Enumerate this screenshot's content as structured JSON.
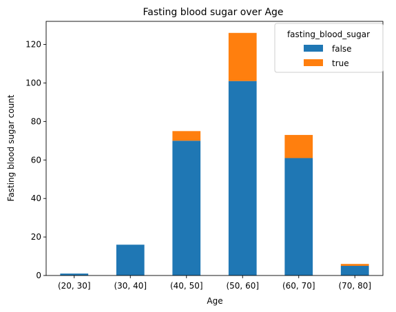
{
  "chart_data": {
    "type": "bar",
    "stacked": true,
    "title": "Fasting blood sugar over Age",
    "xlabel": "Age",
    "ylabel": "Fasting blood sugar count",
    "categories": [
      "(20, 30]",
      "(30, 40]",
      "(40, 50]",
      "(50, 60]",
      "(60, 70]",
      "(70, 80]"
    ],
    "series": [
      {
        "name": "false",
        "values": [
          1,
          16,
          70,
          101,
          61,
          5
        ],
        "color": "#1f77b4"
      },
      {
        "name": "true",
        "values": [
          0,
          0,
          5,
          25,
          12,
          1
        ],
        "color": "#ff7f0e"
      }
    ],
    "ylim": [
      0,
      132
    ],
    "yticks": [
      0,
      20,
      40,
      60,
      80,
      100,
      120
    ],
    "legend": {
      "title": "fasting_blood_sugar",
      "position": "top-right"
    },
    "grid": false
  }
}
